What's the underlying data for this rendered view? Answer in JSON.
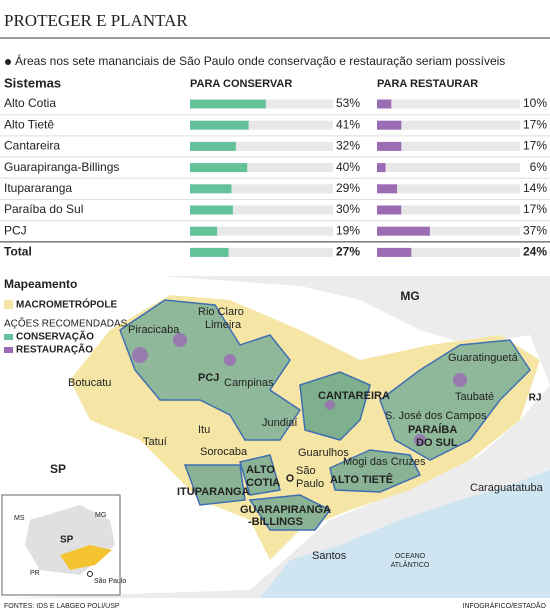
{
  "header": {
    "title": "PROTEGER E PLANTAR",
    "subtitle": "Áreas nos sete mananciais de São Paulo onde conservação e restauração seriam possíveis"
  },
  "chart_data": {
    "type": "bar",
    "category_header": "Sistemas",
    "categories": [
      "Alto Cotia",
      "Alto Tietê",
      "Cantareira",
      "Guarapiranga-Billings",
      "Itupararanga",
      "Paraíba do Sul",
      "PCJ",
      "Total"
    ],
    "xlim": [
      0,
      100
    ],
    "series": [
      {
        "name": "PARA CONSERVAR",
        "color": "#64c29b",
        "values": [
          53,
          41,
          32,
          40,
          29,
          30,
          19,
          27
        ],
        "value_labels": [
          "53%",
          "41%",
          "32%",
          "40%",
          "29%",
          "30%",
          "19%",
          "27%"
        ]
      },
      {
        "name": "PARA RESTAURAR",
        "color": "#9b6cb4",
        "values": [
          10,
          17,
          17,
          6,
          14,
          17,
          37,
          24
        ],
        "value_labels": [
          "10%",
          "17%",
          "17%",
          "6%",
          "14%",
          "17%",
          "37%",
          "24%"
        ]
      }
    ]
  },
  "map": {
    "title": "Mapeamento",
    "legend": {
      "macro": "MACROMETRÓPOLE",
      "actions": "AÇÕES RECOMENDADAS",
      "conserve": "CONSERVAÇÃO",
      "restore": "RESTAURAÇÃO"
    },
    "states": [
      "MG",
      "RJ",
      "SP"
    ],
    "cities": [
      "Rio Claro",
      "Limeira",
      "Piracicaba",
      "Campinas",
      "Botucatu",
      "Jundiaí",
      "Itu",
      "Tatuí",
      "Sorocaba",
      "S. José dos Campos",
      "Taubaté",
      "Guaratinguetá",
      "Mogi das Cruzes",
      "Guarulhos",
      "Caraguatatuba",
      "Santos"
    ],
    "sp_city": [
      "São",
      "Paulo"
    ],
    "systems": [
      [
        "PCJ"
      ],
      [
        "CANTAREIRA"
      ],
      [
        "PARAÍBA",
        "DO SUL"
      ],
      [
        "ALTO TIETÊ"
      ],
      [
        "ALTO",
        "COTIA"
      ],
      [
        "ITUPARANGA"
      ],
      [
        "GUARAPIRANGA",
        "-BILLINGS"
      ]
    ],
    "ocean": [
      "OCEANO",
      "ATLÂNTICO"
    ],
    "inset": [
      "MS",
      "MG",
      "SP",
      "PR",
      "São Paulo"
    ]
  },
  "footer": {
    "source": "FONTES: IDS E LABGEO POLI/USP",
    "credit": "INFOGRÁFICO/ESTADÃO"
  }
}
